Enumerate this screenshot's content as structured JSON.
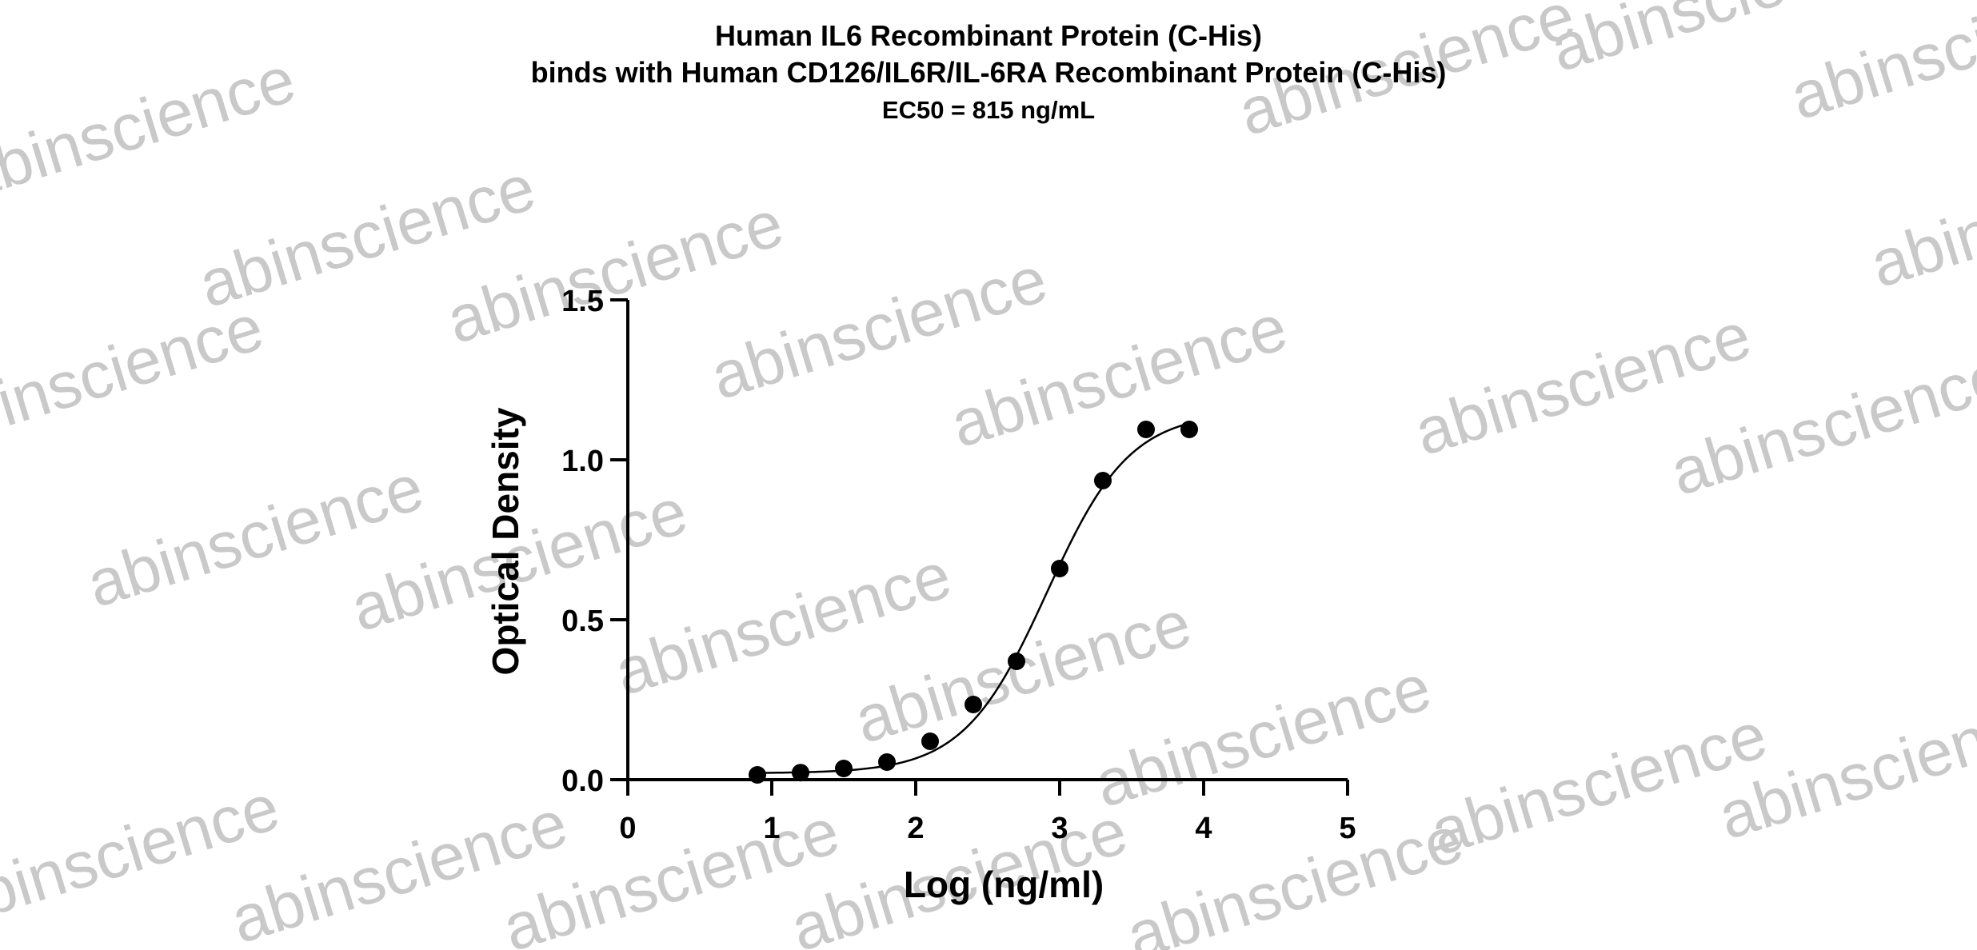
{
  "watermark": {
    "text": "abinscience",
    "color": "#c9c9c9"
  },
  "chart_data": {
    "type": "scatter",
    "title": "Human IL6 Recombinant Protein (C-His)",
    "subtitle": "binds with Human CD126/IL6R/IL-6RA Recombinant Protein (C-His)",
    "annotation": "EC50 = 815 ng/mL",
    "xlabel": "Log (ng/ml)",
    "ylabel": "Optical Density",
    "xlim": [
      0,
      5
    ],
    "ylim": [
      0,
      1.5
    ],
    "x_ticks": [
      "0",
      "1",
      "2",
      "3",
      "4",
      "5"
    ],
    "y_ticks": [
      "0.0",
      "0.5",
      "1.0",
      "1.5"
    ],
    "grid": false,
    "legend": "none",
    "series": [
      {
        "x": [
          0.9,
          1.2,
          1.5,
          1.8,
          2.1,
          2.4,
          2.7,
          3.0,
          3.3,
          3.6,
          3.9
        ],
        "y": [
          0.015,
          0.022,
          0.035,
          0.055,
          0.12,
          0.235,
          0.37,
          0.66,
          0.935,
          1.095,
          1.095
        ]
      }
    ],
    "fit_curve": {
      "model": "4PL",
      "bottom": 0.02,
      "top": 1.15,
      "log_ec50": 2.911,
      "hill_slope": 1.5,
      "x_range": [
        0.9,
        3.9
      ]
    },
    "colors": {
      "points": "#000000",
      "curve": "#000000",
      "axes": "#000000"
    }
  }
}
